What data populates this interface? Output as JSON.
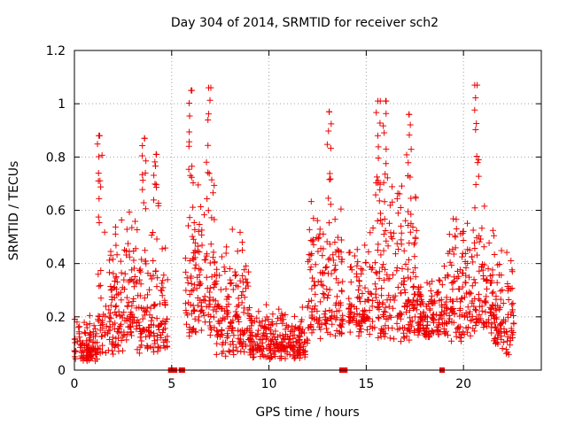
{
  "chart_data": {
    "type": "scatter",
    "title": "Day 304 of 2014, SRMTID for receiver sch2",
    "xlabel": "GPS time / hours",
    "ylabel": "SRMTID / TECUs",
    "xlim": [
      0,
      24
    ],
    "ylim": [
      0,
      1.2
    ],
    "xticks": [
      0,
      5,
      10,
      15,
      20
    ],
    "xtick_labels": [
      "0",
      "5",
      "10",
      "15",
      "20"
    ],
    "yticks": [
      0,
      0.2,
      0.4,
      0.6,
      0.8,
      1,
      1.2
    ],
    "ytick_labels": [
      "0",
      "0.2",
      "0.4",
      "0.6",
      "0.8",
      "1",
      "1.2"
    ],
    "grid": true,
    "marker": "+",
    "color": "#ee0000",
    "notable_points": [
      {
        "x": 1.3,
        "y": 0.88
      },
      {
        "x": 3.6,
        "y": 0.87
      },
      {
        "x": 4.2,
        "y": 0.81
      },
      {
        "x": 6.0,
        "y": 1.05
      },
      {
        "x": 6.9,
        "y": 1.06
      },
      {
        "x": 13.1,
        "y": 0.97
      },
      {
        "x": 15.6,
        "y": 1.01
      },
      {
        "x": 16.0,
        "y": 1.01
      },
      {
        "x": 17.2,
        "y": 0.96
      },
      {
        "x": 20.7,
        "y": 1.07
      }
    ],
    "activity_profile": [
      {
        "start": 0.0,
        "end": 1.2,
        "low": 0.03,
        "high": 0.2
      },
      {
        "start": 1.2,
        "end": 3.3,
        "low": 0.05,
        "high": 0.55
      },
      {
        "start": 3.3,
        "end": 4.8,
        "low": 0.05,
        "high": 0.5
      },
      {
        "start": 5.7,
        "end": 7.3,
        "low": 0.1,
        "high": 0.7
      },
      {
        "start": 7.3,
        "end": 9.0,
        "low": 0.05,
        "high": 0.45
      },
      {
        "start": 9.0,
        "end": 12.0,
        "low": 0.04,
        "high": 0.22
      },
      {
        "start": 12.0,
        "end": 13.8,
        "low": 0.1,
        "high": 0.6
      },
      {
        "start": 14.1,
        "end": 15.2,
        "low": 0.12,
        "high": 0.45
      },
      {
        "start": 15.2,
        "end": 17.6,
        "low": 0.1,
        "high": 0.7
      },
      {
        "start": 17.6,
        "end": 19.2,
        "low": 0.12,
        "high": 0.35
      },
      {
        "start": 19.2,
        "end": 21.6,
        "low": 0.1,
        "high": 0.6
      },
      {
        "start": 21.6,
        "end": 22.6,
        "low": 0.05,
        "high": 0.45
      }
    ],
    "zero_markers": [
      4.95,
      5.05,
      5.15,
      5.5,
      5.55,
      13.75,
      13.85,
      13.9,
      18.9
    ]
  }
}
